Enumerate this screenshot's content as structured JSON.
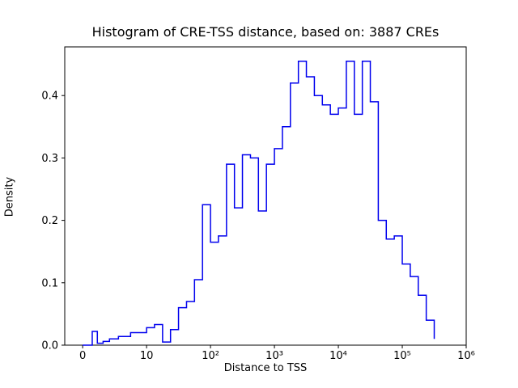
{
  "figure": {
    "background": "#ffffff",
    "text_color": "#000000"
  },
  "chart_data": {
    "type": "histogram-step",
    "title": "Histogram of CRE-TSS distance, based on: 3887 CREs",
    "xlabel": "Distance to TSS",
    "ylabel": "Density",
    "x_scale": "symlog",
    "grid": "off",
    "legend": "none",
    "line_color": "#0000ee",
    "ylim": [
      0,
      0.478
    ],
    "x_units_range": [
      -0.28,
      6.0
    ],
    "x_ticks": [
      {
        "value": 0,
        "label": "0"
      },
      {
        "value": 10,
        "label": "10"
      },
      {
        "value": 100,
        "label": "10²"
      },
      {
        "value": 1000,
        "label": "10³"
      },
      {
        "value": 10000,
        "label": "10⁴"
      },
      {
        "value": 100000,
        "label": "10⁵"
      },
      {
        "value": 1000000,
        "label": "10⁶"
      }
    ],
    "y_ticks": [
      {
        "value": 0.0,
        "label": "0.0"
      },
      {
        "value": 0.1,
        "label": "0.1"
      },
      {
        "value": 0.2,
        "label": "0.2"
      },
      {
        "value": 0.3,
        "label": "0.3"
      },
      {
        "value": 0.4,
        "label": "0.4"
      }
    ],
    "bin_edges": [
      0,
      1.5,
      2.3,
      3.2,
      4.2,
      5.6,
      7.5,
      10,
      13.3,
      17.8,
      23.7,
      31.6,
      42.2,
      56.2,
      75,
      100,
      133,
      178,
      237,
      316,
      422,
      562,
      750,
      1000,
      1333,
      1778,
      2371,
      3162,
      4217,
      5623,
      7499,
      10000,
      13335,
      17783,
      23714,
      31623,
      42170,
      56234,
      74989,
      100000,
      133352,
      177828,
      237137,
      316228
    ],
    "densities": [
      0.0,
      0.022,
      0.003,
      0.006,
      0.01,
      0.014,
      0.02,
      0.028,
      0.033,
      0.005,
      0.025,
      0.06,
      0.07,
      0.105,
      0.225,
      0.165,
      0.175,
      0.29,
      0.22,
      0.305,
      0.3,
      0.215,
      0.29,
      0.315,
      0.35,
      0.42,
      0.455,
      0.43,
      0.4,
      0.385,
      0.37,
      0.38,
      0.455,
      0.37,
      0.455,
      0.39,
      0.2,
      0.17,
      0.175,
      0.13,
      0.11,
      0.08,
      0.04,
      0.01
    ]
  }
}
